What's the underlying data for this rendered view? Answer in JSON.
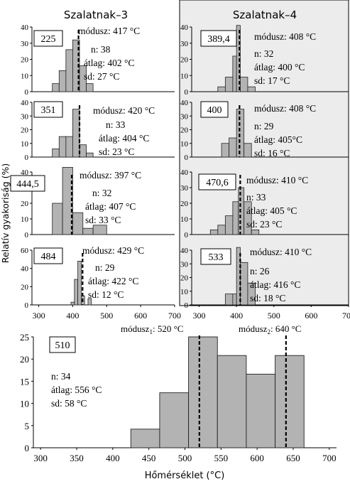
{
  "figure": {
    "col_titles": [
      "Szalatnak–3",
      "Szalatnak–4"
    ],
    "ylabel": "Relatív gyakoriság (%)",
    "xlabel": "Hőmérséklet (°C)"
  },
  "chart_data": [
    {
      "type": "bar",
      "id": "225",
      "label": "225",
      "modus": "módusz: 417 °C",
      "n": "n: 38",
      "atlag": "átlag: 402 °C",
      "sd": "sd: 27 °C",
      "xlim": [
        280,
        700
      ],
      "ylim": [
        0,
        40
      ],
      "yticks": [
        0,
        10,
        20,
        30,
        40
      ],
      "bins": [
        [
          340,
          360,
          5
        ],
        [
          360,
          380,
          13
        ],
        [
          380,
          400,
          26
        ],
        [
          400,
          420,
          32
        ],
        [
          420,
          440,
          16
        ],
        [
          440,
          460,
          5
        ]
      ],
      "mode_line": 417
    },
    {
      "type": "bar",
      "id": "389,4",
      "label": "389,4",
      "modus": "módusz: 408 °C",
      "n": "n: 32",
      "atlag": "átlag: 400 °C",
      "sd": "sd: 17 °C",
      "xlim": [
        280,
        700
      ],
      "ylim": [
        0,
        40
      ],
      "yticks": [
        0,
        10,
        20,
        30,
        40
      ],
      "bins": [
        [
          350,
          370,
          3
        ],
        [
          370,
          390,
          9
        ],
        [
          390,
          400,
          22
        ],
        [
          400,
          410,
          41
        ],
        [
          410,
          430,
          9
        ],
        [
          430,
          450,
          3
        ]
      ],
      "mode_line": 408
    },
    {
      "type": "bar",
      "id": "351",
      "label": "351",
      "modus": "módusz: 420 °C",
      "n": "n: 33",
      "atlag": "átlag: 404 °C",
      "sd": "sd: 23 °C",
      "xlim": [
        280,
        700
      ],
      "ylim": [
        0,
        40
      ],
      "yticks": [
        0,
        10,
        20,
        30,
        40
      ],
      "bins": [
        [
          340,
          360,
          6
        ],
        [
          360,
          380,
          15
        ],
        [
          380,
          400,
          15
        ],
        [
          400,
          420,
          35
        ],
        [
          420,
          440,
          9
        ],
        [
          440,
          460,
          3
        ]
      ],
      "mode_line": 420
    },
    {
      "type": "bar",
      "id": "400",
      "label": "400",
      "modus": "módusz: 408 °C",
      "n": "n: 29",
      "atlag": "átlag: 405°C",
      "sd": "sd: 16 °C",
      "xlim": [
        280,
        700
      ],
      "ylim": [
        0,
        40
      ],
      "yticks": [
        0,
        10,
        20,
        30,
        40
      ],
      "bins": [
        [
          360,
          380,
          10
        ],
        [
          380,
          400,
          14
        ],
        [
          400,
          420,
          35
        ],
        [
          420,
          440,
          10
        ]
      ],
      "mode_line": 408
    },
    {
      "type": "bar",
      "id": "444,5",
      "label": "444,5",
      "modus": "módusz: 397 °C",
      "n": "n: 32",
      "atlag": "átlag: 407 °C",
      "sd": "sd: 33 °C",
      "xlim": [
        280,
        700
      ],
      "ylim": [
        0,
        40
      ],
      "yticks": [
        0,
        10,
        20,
        30,
        40
      ],
      "bins": [
        [
          340,
          370,
          20
        ],
        [
          370,
          400,
          43
        ],
        [
          400,
          430,
          14
        ],
        [
          430,
          460,
          4
        ],
        [
          460,
          500,
          6
        ]
      ],
      "mode_line": 397
    },
    {
      "type": "bar",
      "id": "470,6",
      "label": "470,6",
      "modus": "módusz: 410 °C",
      "n": "n: 33",
      "atlag": "átlag: 405 °C",
      "sd": "sd: 23 °C",
      "xlim": [
        280,
        700
      ],
      "ylim": [
        0,
        40
      ],
      "yticks": [
        0,
        10,
        20,
        30,
        40
      ],
      "bins": [
        [
          330,
          350,
          3
        ],
        [
          350,
          370,
          6
        ],
        [
          370,
          390,
          12
        ],
        [
          390,
          405,
          21
        ],
        [
          405,
          420,
          30
        ],
        [
          420,
          440,
          21
        ],
        [
          440,
          460,
          3
        ]
      ],
      "mode_line": 410
    },
    {
      "type": "bar",
      "id": "484",
      "label": "484",
      "modus": "módusz: 429 °C",
      "n": "n: 29",
      "atlag": "átlag: 422 °C",
      "sd": "sd: 12 °C",
      "xlim": [
        280,
        700
      ],
      "ylim": [
        0,
        60
      ],
      "yticks": [
        0,
        20,
        40,
        60
      ],
      "bins": [
        [
          395,
          405,
          3
        ],
        [
          405,
          415,
          28
        ],
        [
          415,
          425,
          48
        ],
        [
          425,
          435,
          10
        ],
        [
          435,
          445,
          0
        ],
        [
          445,
          455,
          7
        ]
      ],
      "mode_line": 429
    },
    {
      "type": "bar",
      "id": "533",
      "label": "533",
      "modus": "módusz: 410 °C",
      "n": "n: 26",
      "atlag": "átlag: 416 °C",
      "sd": "sd: 18 °C",
      "xlim": [
        280,
        700
      ],
      "ylim": [
        0,
        40
      ],
      "yticks": [
        0,
        10,
        20,
        30,
        40
      ],
      "bins": [
        [
          370,
          390,
          8
        ],
        [
          390,
          400,
          8
        ],
        [
          400,
          410,
          42
        ],
        [
          410,
          430,
          31
        ],
        [
          430,
          450,
          16
        ]
      ],
      "mode_line": 410
    },
    {
      "type": "bar",
      "id": "510",
      "label": "510",
      "modus1": "módusz",
      "modus1_sub": "1",
      "modus1_val": ": 520 °C",
      "modus2": "módusz",
      "modus2_sub": "2",
      "modus2_val": ": 640 °C",
      "n": "n: 34",
      "atlag": "átlag: 556 °C",
      "sd": "sd: 58 °C",
      "xlim": [
        290,
        710
      ],
      "ylim": [
        0,
        25
      ],
      "yticks": [
        0,
        5,
        10,
        15,
        20,
        25
      ],
      "xticks": [
        300,
        350,
        400,
        450,
        500,
        550,
        600,
        650,
        700
      ],
      "bins": [
        [
          425,
          465,
          4.2
        ],
        [
          465,
          505,
          12.4
        ],
        [
          505,
          545,
          25
        ],
        [
          545,
          585,
          20.8
        ],
        [
          585,
          625,
          16.6
        ],
        [
          625,
          665,
          20.8
        ]
      ],
      "mode_lines": [
        520,
        640
      ]
    }
  ],
  "small_xticks": [
    300,
    400,
    500,
    600,
    700
  ]
}
